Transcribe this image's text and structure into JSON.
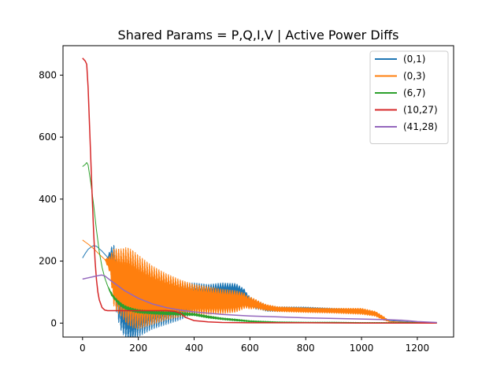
{
  "chart_data": {
    "type": "line",
    "title": "Shared Params = P,Q,I,V | Active Power Diffs",
    "xlabel": "",
    "ylabel": "",
    "xlim": [
      -70,
      1330
    ],
    "ylim": [
      -45,
      895
    ],
    "x_ticks": [
      0,
      200,
      400,
      600,
      800,
      1000,
      1200
    ],
    "y_ticks": [
      0,
      200,
      400,
      600,
      800
    ],
    "x_tick_labels": [
      "0",
      "200",
      "400",
      "600",
      "800",
      "1000",
      "1200"
    ],
    "y_tick_labels": [
      "0",
      "200",
      "400",
      "600",
      "800"
    ],
    "grid": false,
    "legend_position": "top-right",
    "series": [
      {
        "name": "(0,1)",
        "color": "#1f77b4",
        "x": [
          0,
          10,
          20,
          30,
          40,
          50,
          60,
          70,
          80,
          90,
          100,
          110,
          120,
          130,
          140,
          160,
          180,
          200,
          250,
          300,
          350,
          400,
          450,
          500,
          550,
          580,
          590,
          600,
          620,
          640,
          660,
          700,
          800,
          900,
          1000,
          1050,
          1080,
          1100,
          1150,
          1200,
          1270
        ],
        "y": [
          210,
          225,
          238,
          245,
          250,
          248,
          240,
          232,
          222,
          212,
          200,
          175,
          140,
          100,
          65,
          40,
          30,
          45,
          60,
          65,
          70,
          80,
          85,
          95,
          98,
          95,
          80,
          70,
          60,
          55,
          48,
          45,
          45,
          42,
          38,
          30,
          15,
          8,
          5,
          3,
          2
        ],
        "noise_amp": [
          0,
          0,
          0,
          0,
          0,
          0,
          0,
          0,
          0,
          0,
          40,
          80,
          100,
          100,
          95,
          95,
          90,
          90,
          80,
          70,
          60,
          50,
          40,
          35,
          30,
          15,
          15,
          15,
          15,
          12,
          10,
          8,
          7,
          6,
          8,
          6,
          4,
          0,
          0,
          0,
          0
        ]
      },
      {
        "name": "(0,3)",
        "color": "#ff7f0e",
        "x": [
          0,
          20,
          40,
          60,
          80,
          100,
          110,
          120,
          140,
          160,
          180,
          200,
          250,
          300,
          350,
          400,
          450,
          500,
          550,
          580,
          590,
          600,
          620,
          640,
          660,
          700,
          800,
          900,
          1000,
          1050,
          1080,
          1100,
          1150,
          1200,
          1270
        ],
        "y": [
          268,
          255,
          240,
          222,
          205,
          188,
          150,
          140,
          130,
          120,
          110,
          100,
          90,
          85,
          80,
          75,
          73,
          70,
          70,
          72,
          68,
          65,
          62,
          55,
          50,
          45,
          42,
          40,
          38,
          30,
          15,
          5,
          3,
          2,
          1
        ],
        "noise_amp": [
          0,
          0,
          0,
          0,
          0,
          30,
          90,
          100,
          110,
          125,
          125,
          120,
          95,
          75,
          60,
          50,
          45,
          40,
          35,
          25,
          20,
          20,
          15,
          12,
          10,
          8,
          8,
          8,
          10,
          8,
          6,
          0,
          0,
          0,
          0
        ]
      },
      {
        "name": "(6,7)",
        "color": "#2ca02c",
        "x": [
          0,
          10,
          15,
          20,
          30,
          40,
          50,
          60,
          70,
          80,
          90,
          100,
          110,
          120,
          130,
          140,
          150,
          160,
          180,
          200,
          250,
          300,
          350,
          400,
          450,
          500,
          550,
          600,
          650,
          700,
          800,
          900,
          1000,
          1100,
          1200,
          1270
        ],
        "y": [
          505,
          512,
          518,
          510,
          450,
          380,
          300,
          230,
          180,
          145,
          120,
          100,
          85,
          75,
          65,
          58,
          52,
          48,
          42,
          38,
          34,
          32,
          30,
          28,
          20,
          14,
          10,
          6,
          4,
          3,
          2,
          2,
          1,
          1,
          1,
          0
        ],
        "noise_amp": [
          0,
          0,
          0,
          0,
          0,
          0,
          0,
          0,
          0,
          0,
          0,
          5,
          5,
          5,
          6,
          6,
          6,
          6,
          6,
          6,
          5,
          5,
          5,
          4,
          4,
          3,
          3,
          2,
          2,
          1,
          1,
          1,
          1,
          1,
          1,
          0
        ]
      },
      {
        "name": "(10,27)",
        "color": "#d62728",
        "x": [
          0,
          10,
          15,
          20,
          25,
          30,
          35,
          40,
          45,
          50,
          55,
          60,
          70,
          80,
          90,
          100,
          120,
          150,
          200,
          250,
          300,
          330,
          350,
          370,
          400,
          450,
          500,
          600,
          800,
          1000,
          1200,
          1270
        ],
        "y": [
          855,
          845,
          835,
          760,
          640,
          520,
          400,
          290,
          200,
          140,
          100,
          75,
          50,
          42,
          40,
          40,
          40,
          40,
          40,
          40,
          40,
          38,
          32,
          18,
          8,
          4,
          2,
          1,
          1,
          0,
          0,
          0
        ],
        "noise_amp": [
          0,
          0,
          0,
          0,
          0,
          0,
          0,
          0,
          0,
          0,
          0,
          0,
          0,
          0,
          0,
          0,
          0,
          0,
          0,
          0,
          0,
          0,
          0,
          0,
          0,
          0,
          0,
          0,
          0,
          0,
          0,
          0
        ]
      },
      {
        "name": "(41,28)",
        "color": "#9467bd",
        "x": [
          0,
          20,
          40,
          60,
          70,
          80,
          90,
          100,
          120,
          150,
          200,
          250,
          300,
          350,
          400,
          450,
          500,
          600,
          700,
          800,
          900,
          1000,
          1100,
          1150,
          1200,
          1270
        ],
        "y": [
          142,
          146,
          150,
          154,
          155,
          152,
          145,
          138,
          125,
          105,
          80,
          62,
          50,
          42,
          36,
          32,
          28,
          23,
          20,
          17,
          15,
          13,
          11,
          9,
          5,
          2
        ],
        "noise_amp": [
          0,
          0,
          0,
          0,
          0,
          0,
          0,
          0,
          0,
          0,
          0,
          0,
          0,
          0,
          0,
          0,
          0,
          0,
          0,
          0,
          0,
          0,
          0,
          0,
          0,
          0
        ]
      }
    ]
  }
}
